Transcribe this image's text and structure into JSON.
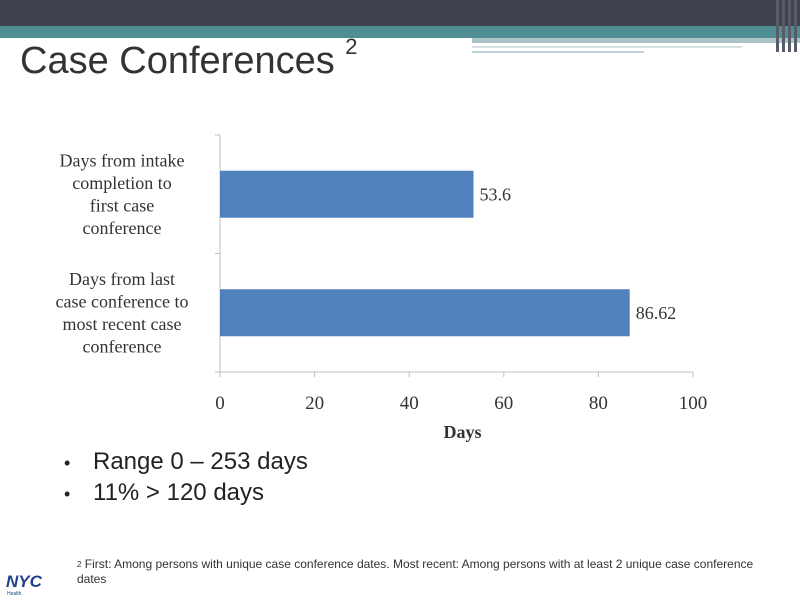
{
  "slide": {
    "title": "Case Conferences",
    "title_superscript": "2"
  },
  "chart_data": {
    "type": "bar",
    "orientation": "horizontal",
    "categories": [
      [
        "Days from intake",
        "completion to",
        "first case",
        "conference"
      ],
      [
        "Days from last",
        "case conference to",
        "most recent case",
        "conference"
      ]
    ],
    "values": [
      53.6,
      86.62
    ],
    "value_labels": [
      "53.6",
      "86.62"
    ],
    "xlabel": "Days",
    "ylabel": "",
    "xlim": [
      0,
      100
    ],
    "xticks": [
      0,
      20,
      40,
      60,
      80,
      100
    ],
    "bar_color": "#4f81bd",
    "grid": false
  },
  "bullets": [
    "Range 0 – 253 days",
    "11% > 120 days"
  ],
  "footnote": {
    "marker": "2",
    "text": "First: Among persons with unique case conference dates. Most recent: Among persons with at least 2 unique case conference dates"
  },
  "logo": {
    "text": "NYC",
    "subtext": "Health",
    "color": "#1f3f8f"
  }
}
